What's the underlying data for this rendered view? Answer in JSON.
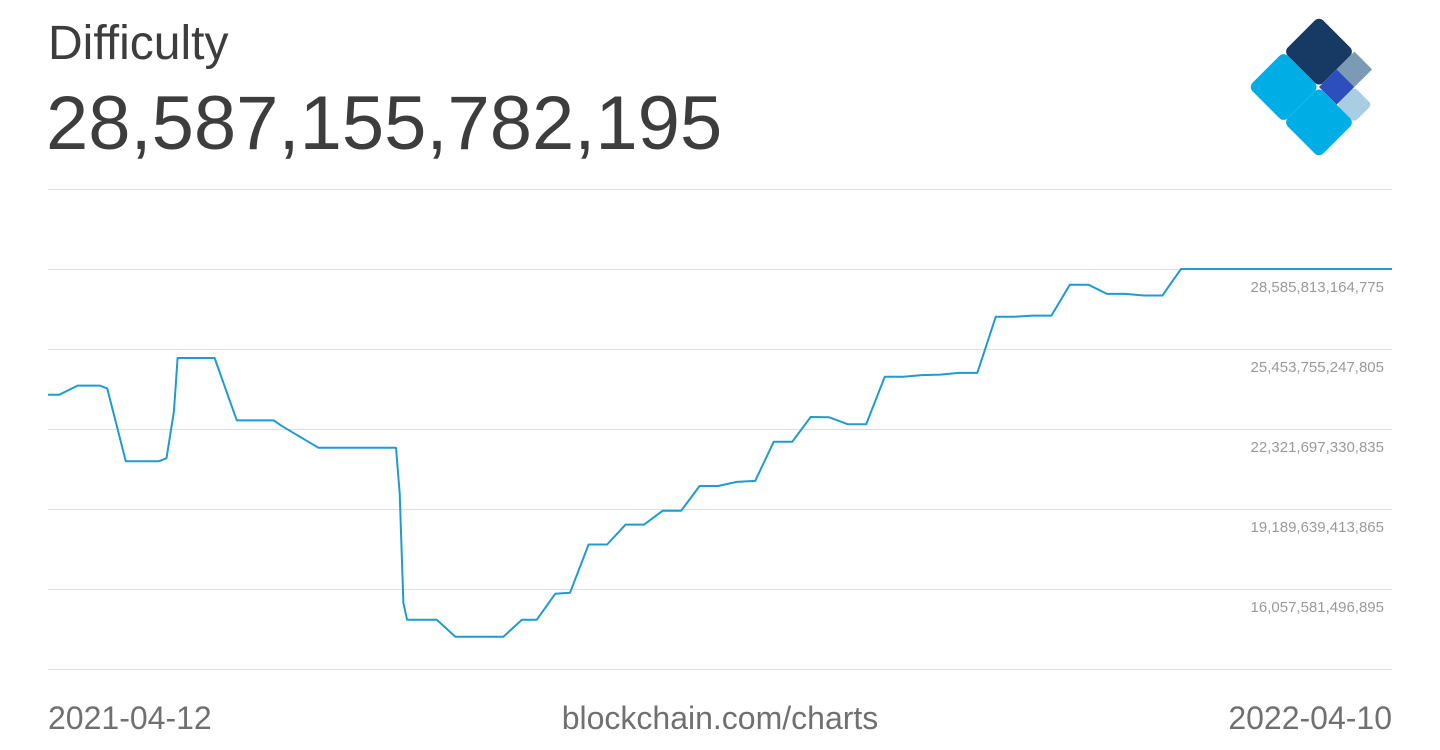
{
  "header": {
    "title": "Difficulty",
    "value": "28,587,155,782,195"
  },
  "footer": {
    "start_date": "2021-04-12",
    "source": "blockchain.com/charts",
    "end_date": "2022-04-10"
  },
  "colors": {
    "line": "#1f9bcf",
    "grid": "#dddddd",
    "logo": [
      "#7a9bb3",
      "#163a63",
      "#2d4fbe",
      "#00aee6",
      "#a9cde3"
    ]
  },
  "chart_data": {
    "type": "line",
    "title": "Difficulty",
    "xlabel": "",
    "ylabel": "",
    "xlim": [
      "2021-04-12",
      "2022-04-10"
    ],
    "ylim": [
      12925523579925,
      31717871081745
    ],
    "yticks": [
      {
        "value": 16057581496895,
        "label": "16,057,581,496,895"
      },
      {
        "value": 19189639413865,
        "label": "19,189,639,413,865"
      },
      {
        "value": 22321697330835,
        "label": "22,321,697,330,835"
      },
      {
        "value": 25453755247805,
        "label": "25,453,755,247,805"
      },
      {
        "value": 28585813164775,
        "label": "28,585,813,164,775"
      }
    ],
    "grid": true,
    "legend": "none",
    "series": [
      {
        "x": [
          "2021-04-12",
          "2021-04-15",
          "2021-04-20",
          "2021-04-26",
          "2021-04-28",
          "2021-05-03",
          "2021-05-12",
          "2021-05-14",
          "2021-05-16",
          "2021-05-17",
          "2021-05-25",
          "2021-05-27",
          "2021-06-02",
          "2021-06-12",
          "2021-06-14",
          "2021-06-24",
          "2021-06-28",
          "2021-07-15",
          "2021-07-16",
          "2021-07-17",
          "2021-07-18",
          "2021-07-23",
          "2021-07-26",
          "2021-07-31",
          "2021-08-13",
          "2021-08-18",
          "2021-08-22",
          "2021-08-27",
          "2021-08-31",
          "2021-09-05",
          "2021-09-10",
          "2021-09-15",
          "2021-09-20",
          "2021-09-25",
          "2021-09-30",
          "2021-10-05",
          "2021-10-10",
          "2021-10-15",
          "2021-10-20",
          "2021-10-25",
          "2021-10-30",
          "2021-11-04",
          "2021-11-09",
          "2021-11-14",
          "2021-11-19",
          "2021-11-24",
          "2021-11-29",
          "2021-12-04",
          "2021-12-09",
          "2021-12-14",
          "2021-12-19",
          "2021-12-24",
          "2021-12-29",
          "2022-01-03",
          "2022-01-08",
          "2022-01-13",
          "2022-01-18",
          "2022-01-23",
          "2022-01-28",
          "2022-02-02",
          "2022-02-07",
          "2022-02-12",
          "2022-02-17",
          "2022-02-22",
          "2022-02-27",
          "2022-03-04",
          "2022-03-09",
          "2022-03-14",
          "2022-03-19",
          "2022-03-24",
          "2022-03-29",
          "2022-04-03",
          "2022-04-06",
          "2022-04-10"
        ],
        "y": [
          23660000000000,
          23660000000000,
          24020000000000,
          24020000000000,
          23910000000000,
          21060000000000,
          21060000000000,
          21180000000000,
          23000000000000,
          25100000000000,
          25100000000000,
          25100000000000,
          22660000000000,
          22660000000000,
          22450000000000,
          21590000000000,
          21590000000000,
          21590000000000,
          19800000000000,
          15500000000000,
          14850000000000,
          14850000000000,
          14850000000000,
          14190000000000,
          14190000000000,
          14850000000000,
          14850000000000,
          15870000000000,
          15910000000000,
          17800000000000,
          17800000000000,
          18580000000000,
          18580000000000,
          19120000000000,
          19120000000000,
          20090000000000,
          20090000000000,
          20250000000000,
          20290000000000,
          21820000000000,
          21820000000000,
          22790000000000,
          22780000000000,
          22510000000000,
          22510000000000,
          24370000000000,
          24370000000000,
          24430000000000,
          24450000000000,
          24520000000000,
          24520000000000,
          26720000000000,
          26720000000000,
          26760000000000,
          26760000000000,
          27970000000000,
          27970000000000,
          27610000000000,
          27610000000000,
          27550000000000,
          27550000000000,
          28587155782195,
          28587155782195,
          28587155782195,
          28587155782195,
          28587155782195,
          28587155782195,
          28587155782195,
          28587155782195,
          28587155782195,
          28587155782195,
          28587155782195,
          28587155782195,
          28587155782195
        ]
      }
    ]
  }
}
